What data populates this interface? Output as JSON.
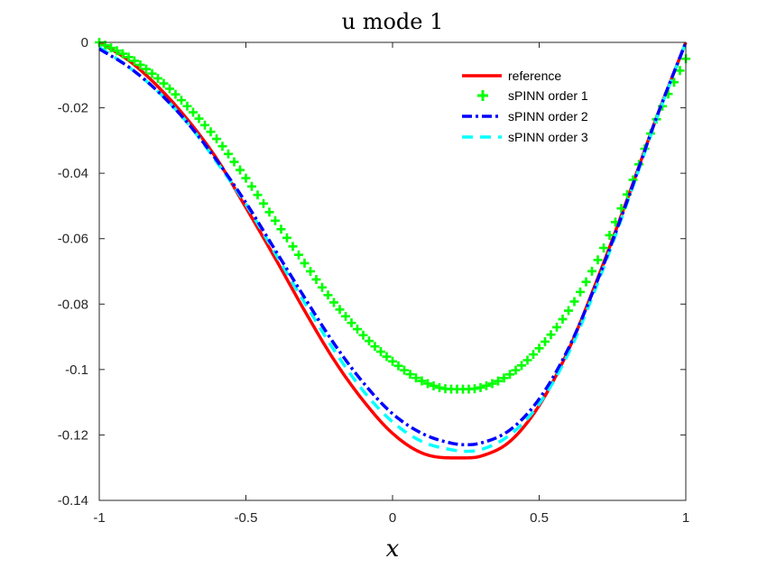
{
  "chart_data": {
    "type": "line",
    "title": "u mode 1",
    "xlabel": "x",
    "ylabel": "",
    "xlim": [
      -1,
      1
    ],
    "ylim": [
      -0.14,
      0
    ],
    "xticks": [
      -1,
      -0.5,
      0,
      0.5,
      1
    ],
    "xtick_labels": [
      "-1",
      "-0.5",
      "0",
      "0.5",
      "1"
    ],
    "yticks": [
      0,
      -0.02,
      -0.04,
      -0.06,
      -0.08,
      -0.1,
      -0.12,
      -0.14
    ],
    "ytick_labels": [
      "0",
      "-0.02",
      "-0.04",
      "-0.06",
      "-0.08",
      "-0.1",
      "-0.12",
      "-0.14"
    ],
    "grid": false,
    "legend_position": "top-right",
    "x": [
      -1,
      -0.9,
      -0.8,
      -0.7,
      -0.6,
      -0.5,
      -0.4,
      -0.3,
      -0.2,
      -0.1,
      0,
      0.1,
      0.2,
      0.25,
      0.3,
      0.4,
      0.5,
      0.6,
      0.7,
      0.8,
      0.9,
      1
    ],
    "series": [
      {
        "name": "reference",
        "color": "#ff0000",
        "style": "solid",
        "values": [
          0,
          -0.0055,
          -0.0135,
          -0.0235,
          -0.0355,
          -0.0505,
          -0.066,
          -0.082,
          -0.097,
          -0.1095,
          -0.1195,
          -0.1255,
          -0.127,
          -0.127,
          -0.1265,
          -0.122,
          -0.111,
          -0.094,
          -0.072,
          -0.048,
          -0.023,
          0
        ]
      },
      {
        "name": "sPINN order 1",
        "color": "#00ff00",
        "style": "plus",
        "values": [
          0,
          -0.0045,
          -0.011,
          -0.0195,
          -0.0295,
          -0.0415,
          -0.0545,
          -0.0675,
          -0.0795,
          -0.0895,
          -0.0975,
          -0.1035,
          -0.106,
          -0.106,
          -0.1055,
          -0.1015,
          -0.0935,
          -0.082,
          -0.0665,
          -0.0465,
          -0.0235,
          -0.005
        ]
      },
      {
        "name": "sPINN order 2",
        "color": "#0000ff",
        "style": "dashdot",
        "values": [
          -0.002,
          -0.0075,
          -0.015,
          -0.0245,
          -0.036,
          -0.049,
          -0.0635,
          -0.078,
          -0.092,
          -0.104,
          -0.1135,
          -0.1195,
          -0.1225,
          -0.123,
          -0.1225,
          -0.1185,
          -0.109,
          -0.0935,
          -0.0725,
          -0.0485,
          -0.023,
          0
        ]
      },
      {
        "name": "sPINN order 3",
        "color": "#00ffff",
        "style": "dashed",
        "values": [
          -0.0015,
          -0.0075,
          -0.015,
          -0.0245,
          -0.0365,
          -0.0495,
          -0.0645,
          -0.0795,
          -0.094,
          -0.1065,
          -0.116,
          -0.122,
          -0.1245,
          -0.125,
          -0.1245,
          -0.12,
          -0.1105,
          -0.095,
          -0.0735,
          -0.049,
          -0.0235,
          0
        ]
      }
    ]
  }
}
